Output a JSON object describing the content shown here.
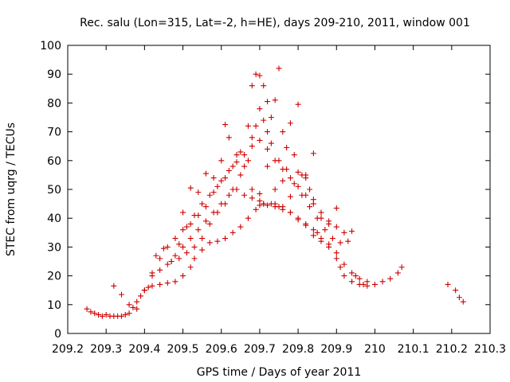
{
  "chart_data": {
    "type": "scatter",
    "title": "Rec. salu (Lon=315, Lat=-2, h=HE), days 209-210, 2011, window 001",
    "xlabel": "GPS time / Days of year 2011",
    "ylabel": "STEC from uqrg / TECUs",
    "xlim": [
      209.2,
      210.3
    ],
    "ylim": [
      0,
      100
    ],
    "xticks": [
      "209.2",
      "209.3",
      "209.4",
      "209.5",
      "209.6",
      "209.7",
      "209.8",
      "209.9",
      "210",
      "210.1",
      "210.2",
      "210.3"
    ],
    "yticks": [
      "0",
      "10",
      "20",
      "30",
      "40",
      "50",
      "60",
      "70",
      "80",
      "90",
      "100"
    ],
    "grid": false,
    "legend": "none",
    "marker": "plus",
    "color": "#cc0000",
    "series": [
      {
        "x": [
          209.25,
          209.26,
          209.27,
          209.28,
          209.29,
          209.3,
          209.31,
          209.32,
          209.33,
          209.34,
          209.35,
          209.36,
          209.37,
          209.38,
          209.39,
          209.4,
          209.41,
          209.42,
          209.44,
          209.46,
          209.48,
          209.5,
          209.52,
          209.53,
          209.55,
          209.57,
          209.59,
          209.61,
          209.63,
          209.65,
          209.67,
          209.69,
          209.7,
          209.71,
          209.73,
          209.74,
          209.75,
          209.76,
          209.78,
          209.8,
          209.82,
          209.84,
          209.85,
          209.86,
          209.88,
          209.9,
          209.91,
          209.92,
          209.94,
          209.96,
          209.98,
          210.0,
          210.02,
          210.04,
          210.06,
          210.07,
          210.19,
          210.21,
          210.22,
          210.23
        ],
        "y": [
          8.5,
          7.5,
          7,
          6.5,
          6,
          6.5,
          6,
          6,
          6,
          6,
          6.5,
          7,
          9,
          11,
          13,
          15,
          16,
          16.5,
          17,
          17.5,
          18,
          20,
          23,
          26,
          29,
          31.5,
          32,
          33,
          35,
          37,
          40,
          43,
          44.5,
          45,
          45,
          44,
          44,
          43,
          42,
          40,
          38,
          36,
          35,
          33,
          30,
          26,
          23,
          20,
          18,
          17,
          16.5,
          17,
          18,
          19,
          21,
          23,
          17,
          15,
          12.5,
          11
        ]
      },
      {
        "x": [
          209.32,
          209.34,
          209.36,
          209.38,
          209.4,
          209.42,
          209.44,
          209.46,
          209.48,
          209.5,
          209.52,
          209.54,
          209.56,
          209.58,
          209.6,
          209.62,
          209.64,
          209.66,
          209.68,
          209.7,
          209.71,
          209.72,
          209.74,
          209.76,
          209.78,
          209.8,
          209.82,
          209.84,
          209.86,
          209.88,
          209.9,
          209.92,
          209.94,
          209.96,
          209.98
        ],
        "y": [
          16.5,
          13.5,
          10,
          8.5,
          15,
          20,
          22,
          24,
          27,
          30,
          33,
          36,
          39,
          42,
          45,
          48,
          50,
          48,
          47,
          46,
          45,
          44.5,
          45,
          44,
          42,
          39.5,
          37.5,
          34,
          32,
          31,
          28,
          24,
          21,
          19,
          18
        ]
      },
      {
        "x": [
          209.43,
          209.45,
          209.47,
          209.49,
          209.51,
          209.53,
          209.55,
          209.57,
          209.59,
          209.61,
          209.63,
          209.65,
          209.67,
          209.68,
          209.69,
          209.7,
          209.71,
          209.72,
          209.73,
          209.75,
          209.77,
          209.79,
          209.81,
          209.83,
          209.85,
          209.87,
          209.89,
          209.91,
          209.93,
          209.95,
          209.97
        ],
        "y": [
          27,
          29.5,
          25,
          26,
          28,
          30,
          33,
          38,
          42,
          45,
          50,
          55,
          60,
          68,
          72,
          78,
          74,
          70,
          66,
          60,
          57,
          52,
          48,
          44,
          40,
          36,
          33,
          31.5,
          32,
          20,
          17
        ]
      },
      {
        "x": [
          209.42,
          209.44,
          209.46,
          209.48,
          209.5,
          209.52,
          209.54,
          209.56,
          209.58,
          209.6,
          209.62,
          209.64,
          209.66,
          209.68,
          209.7,
          209.72,
          209.74,
          209.76,
          209.78,
          209.8,
          209.82,
          209.84,
          209.86,
          209.88,
          209.9,
          209.92,
          209.94
        ],
        "y": [
          21,
          26,
          30,
          33,
          36,
          38,
          41,
          44,
          49,
          53,
          56.5,
          59.5,
          62,
          65,
          67,
          64,
          60,
          57,
          54,
          51,
          48,
          45,
          42,
          39,
          37,
          35,
          35.5
        ]
      },
      {
        "x": [
          209.47,
          209.49,
          209.51,
          209.53,
          209.55,
          209.57,
          209.59,
          209.61,
          209.63,
          209.65,
          209.67,
          209.68,
          209.69,
          209.7,
          209.71,
          209.72,
          209.73,
          209.74,
          209.75,
          209.76,
          209.77,
          209.78,
          209.79,
          209.8,
          209.81,
          209.82,
          209.83,
          209.84,
          209.86,
          209.88,
          209.9
        ],
        "y": [
          25,
          31,
          37,
          41,
          45,
          48,
          51,
          54,
          58,
          63,
          72,
          86,
          90,
          89.5,
          86,
          80.5,
          75,
          81,
          92,
          70,
          64.5,
          73,
          62,
          56,
          55,
          54,
          50,
          46.5,
          40,
          38,
          43.5
        ]
      },
      {
        "x": [
          209.5,
          209.52,
          209.54,
          209.56,
          209.58,
          209.6,
          209.61,
          209.62,
          209.64,
          209.66,
          209.68,
          209.7,
          209.72,
          209.74,
          209.76,
          209.78,
          209.8,
          209.82,
          209.84
        ],
        "y": [
          42,
          50.5,
          49,
          55.5,
          54,
          60,
          72.5,
          68,
          62,
          58,
          50,
          48.5,
          58,
          50,
          53,
          47.5,
          79.5,
          55,
          62.5
        ]
      }
    ]
  }
}
